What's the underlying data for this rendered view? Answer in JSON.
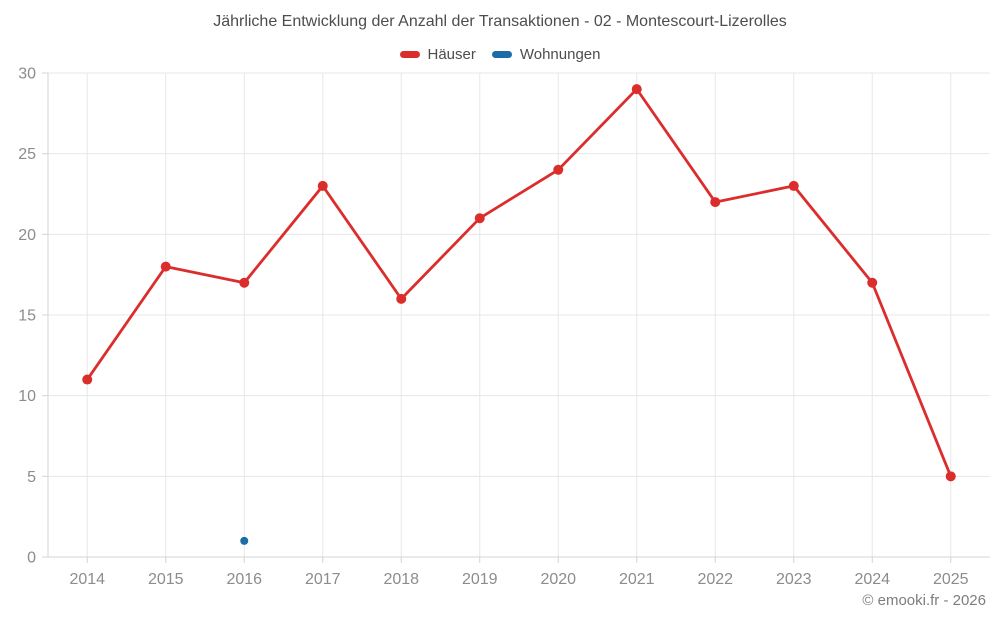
{
  "page": {
    "title": "Jährliche Entwicklung der Anzahl der Transaktionen - 02 - Montescourt-Lizerolles",
    "footer": "© emooki.fr - 2026"
  },
  "legend": {
    "items": [
      {
        "label": "Häuser",
        "color": "#dc2d2d"
      },
      {
        "label": "Wohnungen",
        "color": "#1b6ca8"
      }
    ]
  },
  "chart_data": {
    "type": "line",
    "title": "Jährliche Entwicklung der Anzahl der Transaktionen - 02 - Montescourt-Lizerolles",
    "x": [
      "2014",
      "2015",
      "2016",
      "2017",
      "2018",
      "2019",
      "2020",
      "2021",
      "2022",
      "2023",
      "2024",
      "2025"
    ],
    "series": [
      {
        "name": "Häuser",
        "color": "#dc2d2d",
        "point_radius": 5,
        "values": [
          11,
          18,
          17,
          23,
          16,
          21,
          24,
          29,
          22,
          23,
          17,
          5
        ]
      },
      {
        "name": "Wohnungen",
        "color": "#1b6ca8",
        "point_radius": 4,
        "values": [
          null,
          null,
          1,
          null,
          null,
          null,
          null,
          null,
          null,
          null,
          null,
          null
        ]
      }
    ],
    "xlabel": "",
    "ylabel": "",
    "ylim": [
      0,
      30
    ],
    "yticks": [
      0,
      5,
      10,
      15,
      20,
      25,
      30
    ],
    "grid": true,
    "legend_position": "top"
  },
  "colors": {
    "grid": "#e7e7e7",
    "axis_border": "#d4d4d4",
    "tick_label": "#8c8c8c",
    "title_text": "#4d4d4d",
    "background": "#ffffff"
  }
}
